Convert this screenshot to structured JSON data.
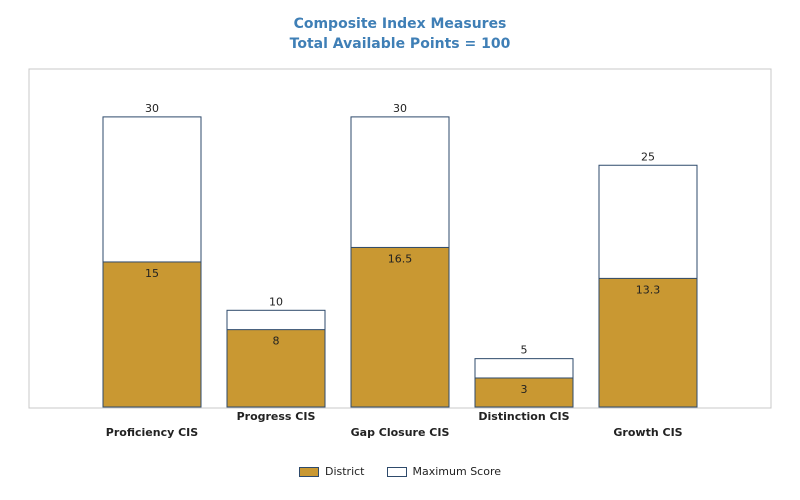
{
  "chart_data": {
    "type": "bar",
    "title": "Composite Index Measures",
    "subtitle": "Total Available Points = 100",
    "categories": [
      "Proficiency CIS",
      "Progress CIS",
      "Gap Closure CIS",
      "Distinction CIS",
      "Growth CIS"
    ],
    "series": [
      {
        "name": "District",
        "values": [
          15,
          8,
          16.5,
          3,
          13.3
        ],
        "color": "#c99832"
      },
      {
        "name": "Maximum Score",
        "values": [
          30,
          10,
          30,
          5,
          25
        ],
        "color": "#ffffff"
      }
    ],
    "stacking": "overlay",
    "ylim": [
      0,
      30
    ],
    "grid": false,
    "legend_position": "bottom-center",
    "border_color": "#2e4a6b",
    "title_color": "#3f7fb6"
  }
}
